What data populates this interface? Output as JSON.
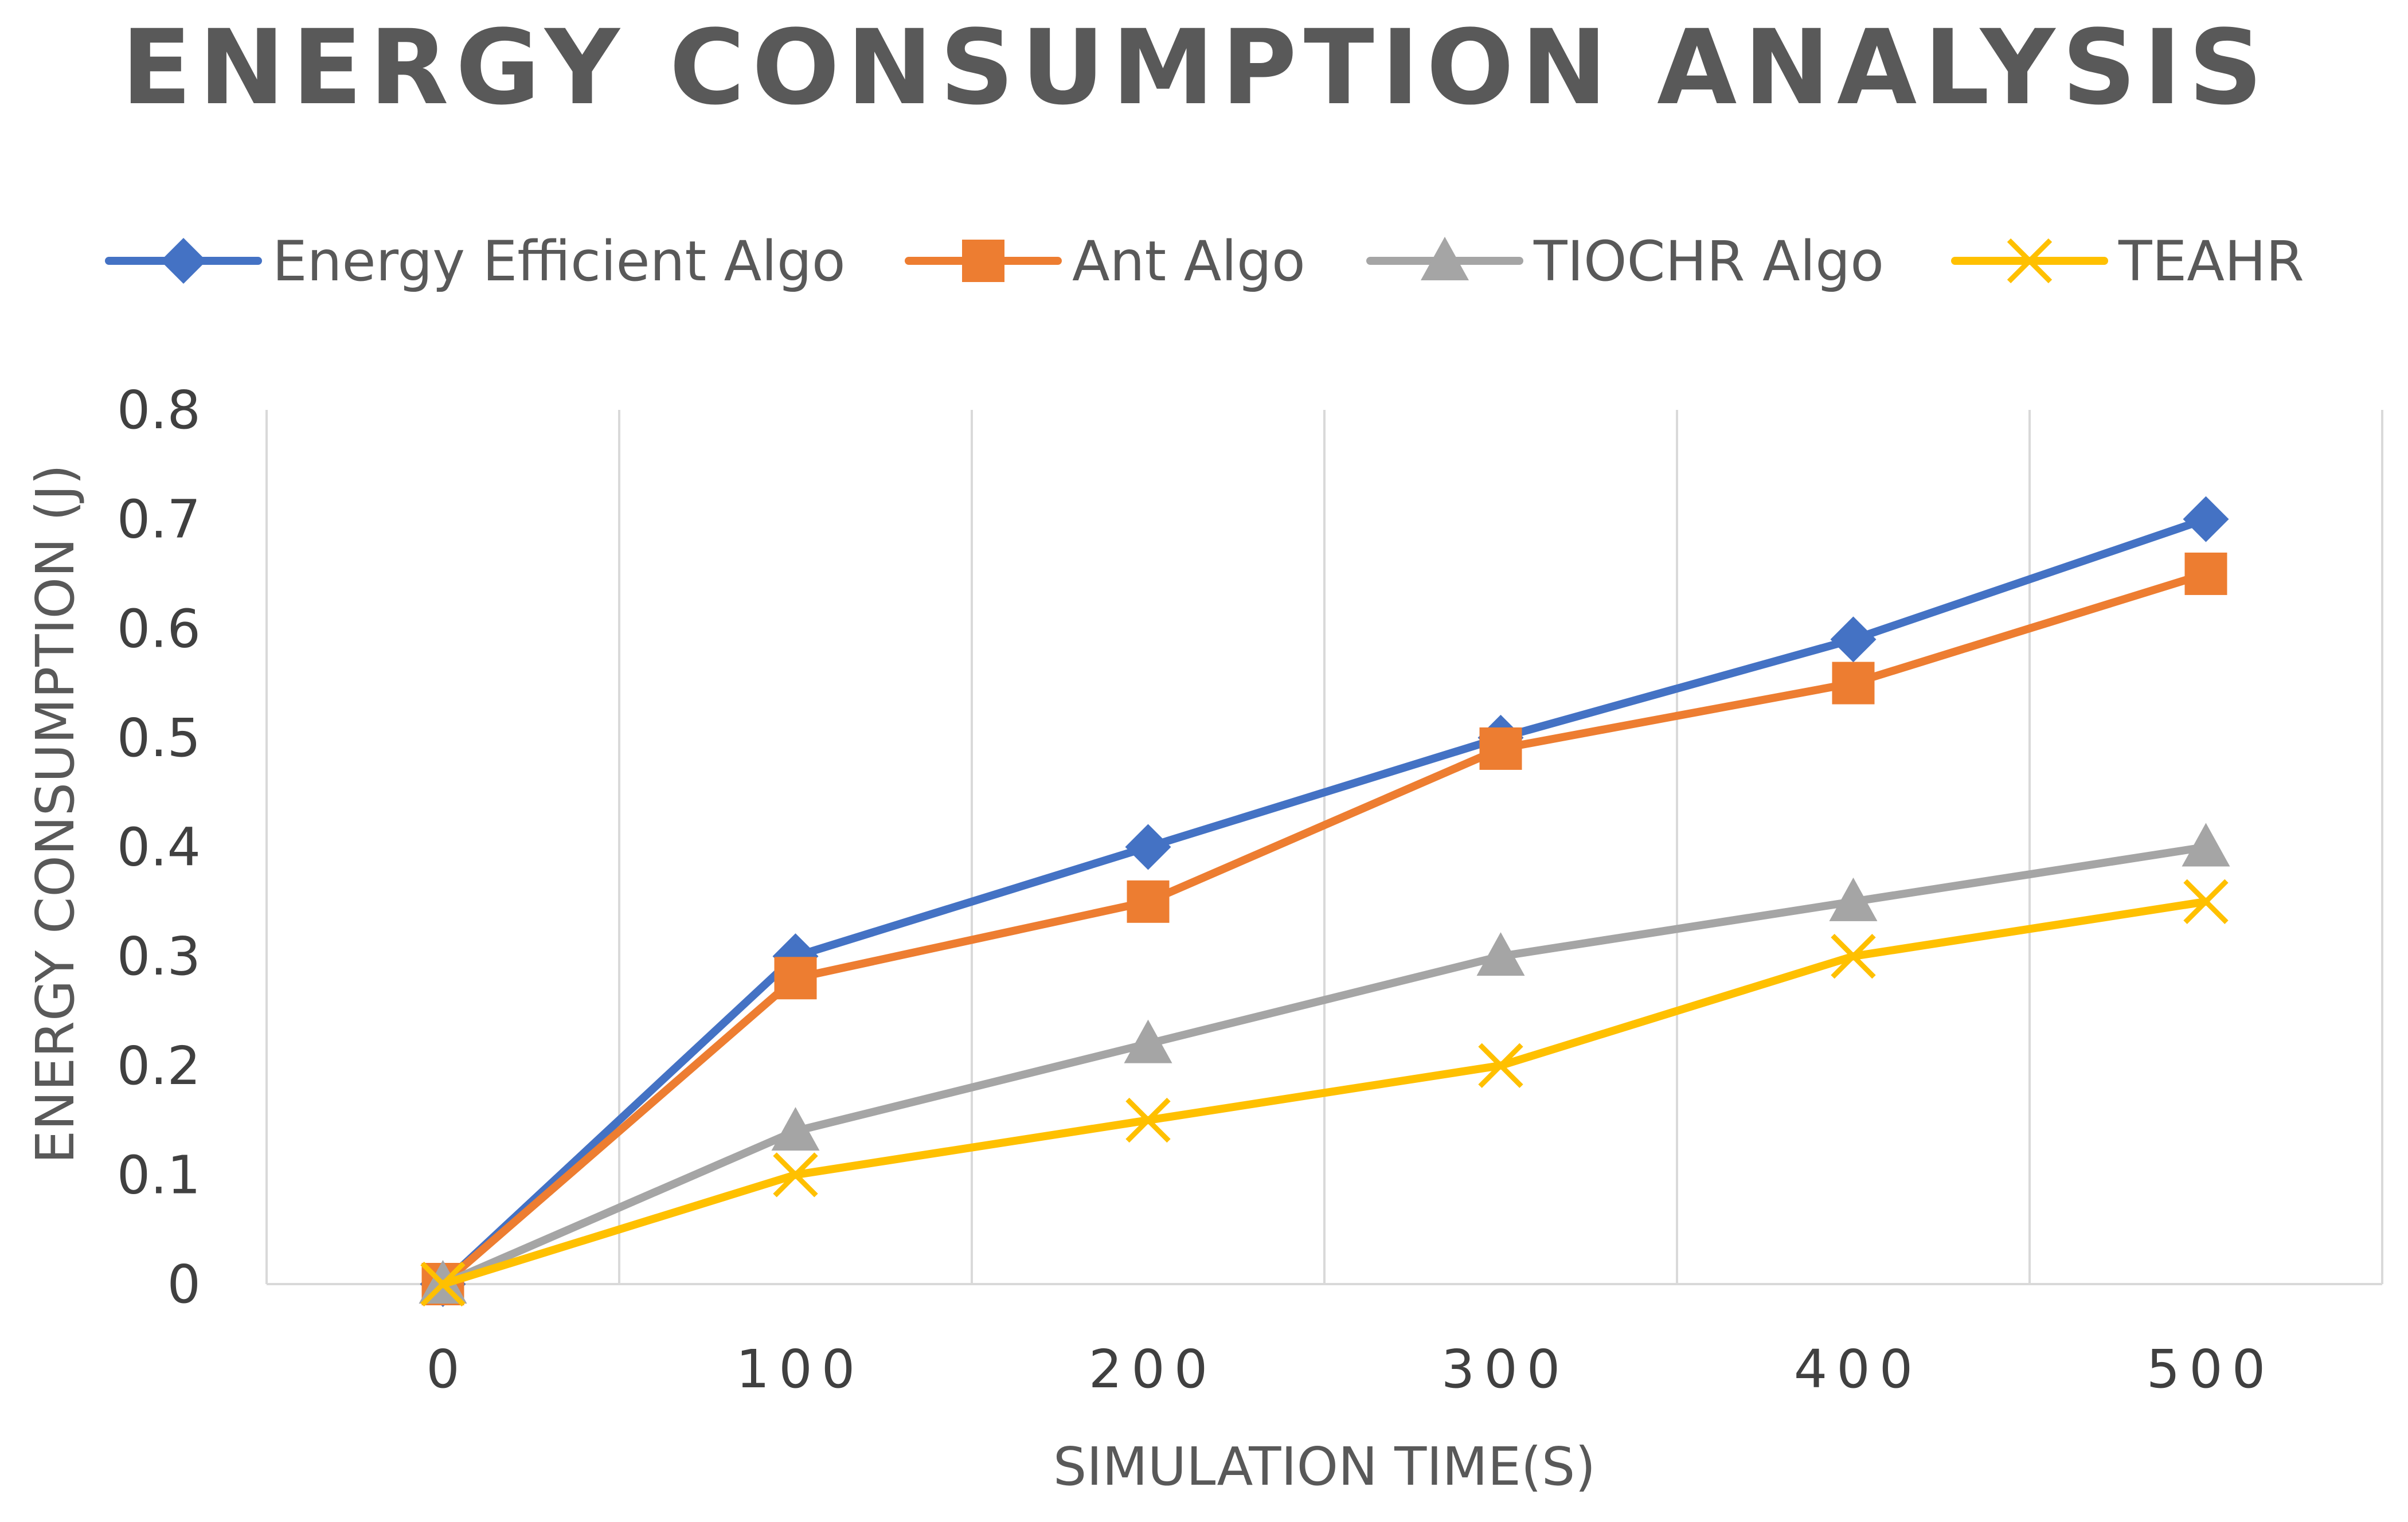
{
  "chart_data": {
    "type": "line",
    "title": "ENERGY CONSUMPTION ANALYSIS",
    "xlabel": "SIMULATION TIME(S)",
    "ylabel": "ENERGY CONSUMPTION (J)",
    "x": [
      0,
      100,
      200,
      300,
      400,
      500
    ],
    "x_tick_labels": [
      "0",
      "100",
      "200",
      "300",
      "400",
      "500"
    ],
    "ylim": [
      0,
      0.8
    ],
    "y_tick_labels": [
      "0",
      "0.1",
      "0.2",
      "0.3",
      "0.4",
      "0.5",
      "0.6",
      "0.7",
      "0.8"
    ],
    "grid": "vertical",
    "legend_position": "top",
    "series": [
      {
        "name": "Energy Efficient Algo",
        "color": "#4472C4",
        "marker": "diamond",
        "values": [
          0,
          0.3,
          0.4,
          0.5,
          0.59,
          0.7
        ]
      },
      {
        "name": "Ant Algo",
        "color": "#ED7D31",
        "marker": "square",
        "values": [
          0,
          0.28,
          0.35,
          0.49,
          0.55,
          0.65
        ]
      },
      {
        "name": "TIOCHR Algo",
        "color": "#A5A5A5",
        "marker": "triangle",
        "values": [
          0,
          0.14,
          0.22,
          0.3,
          0.35,
          0.4
        ]
      },
      {
        "name": "TEAHR",
        "color": "#FFC000",
        "marker": "x",
        "values": [
          0,
          0.1,
          0.15,
          0.2,
          0.3,
          0.35
        ]
      }
    ]
  }
}
